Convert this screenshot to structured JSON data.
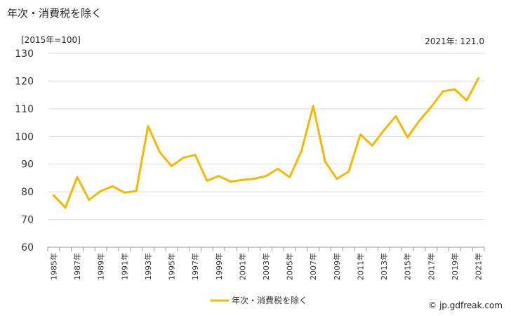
{
  "title": "年次・消費税を除く",
  "unit_label": "[2015年=100]",
  "latest_label": "2021年: 121.0",
  "credit": "© jp.gdfreak.com",
  "colors": {
    "line": "#f5b800",
    "grid": "#dddddd",
    "axis": "#999999"
  },
  "chart_data": {
    "type": "line",
    "ylim": [
      60,
      130
    ],
    "y_ticks": [
      "60",
      "70",
      "80",
      "90",
      "100",
      "110",
      "120",
      "130"
    ],
    "x": [
      "1985年",
      "1986年",
      "1987年",
      "1988年",
      "1989年",
      "1990年",
      "1991年",
      "1992年",
      "1993年",
      "1994年",
      "1995年",
      "1996年",
      "1997年",
      "1998年",
      "1999年",
      "2000年",
      "2001年",
      "2002年",
      "2003年",
      "2004年",
      "2005年",
      "2006年",
      "2007年",
      "2008年",
      "2009年",
      "2010年",
      "2011年",
      "2012年",
      "2013年",
      "2014年",
      "2015年",
      "2016年",
      "2017年",
      "2018年",
      "2019年",
      "2020年",
      "2021年"
    ],
    "x_tick_labels": [
      "1985年",
      "1987年",
      "1989年",
      "1991年",
      "1993年",
      "1995年",
      "1997年",
      "1999年",
      "2001年",
      "2003年",
      "2005年",
      "2007年",
      "2009年",
      "2011年",
      "2013年",
      "2015年",
      "2017年",
      "2019年",
      "2021年"
    ],
    "series": [
      {
        "name": "年次・消費税を除く",
        "values": [
          78.7,
          74.3,
          85.3,
          77.1,
          80.3,
          82.0,
          79.7,
          80.3,
          103.7,
          94.3,
          89.3,
          92.3,
          93.3,
          84.0,
          85.7,
          83.7,
          84.3,
          84.7,
          85.7,
          88.3,
          85.3,
          94.7,
          111.0,
          91.0,
          84.7,
          87.3,
          100.7,
          96.7,
          102.3,
          107.3,
          99.7,
          105.7,
          110.7,
          116.3,
          117.0,
          113.0,
          121.0
        ]
      }
    ],
    "legend": {
      "position": "bottom",
      "label": "年次・消費税を除く"
    },
    "grid": true
  }
}
